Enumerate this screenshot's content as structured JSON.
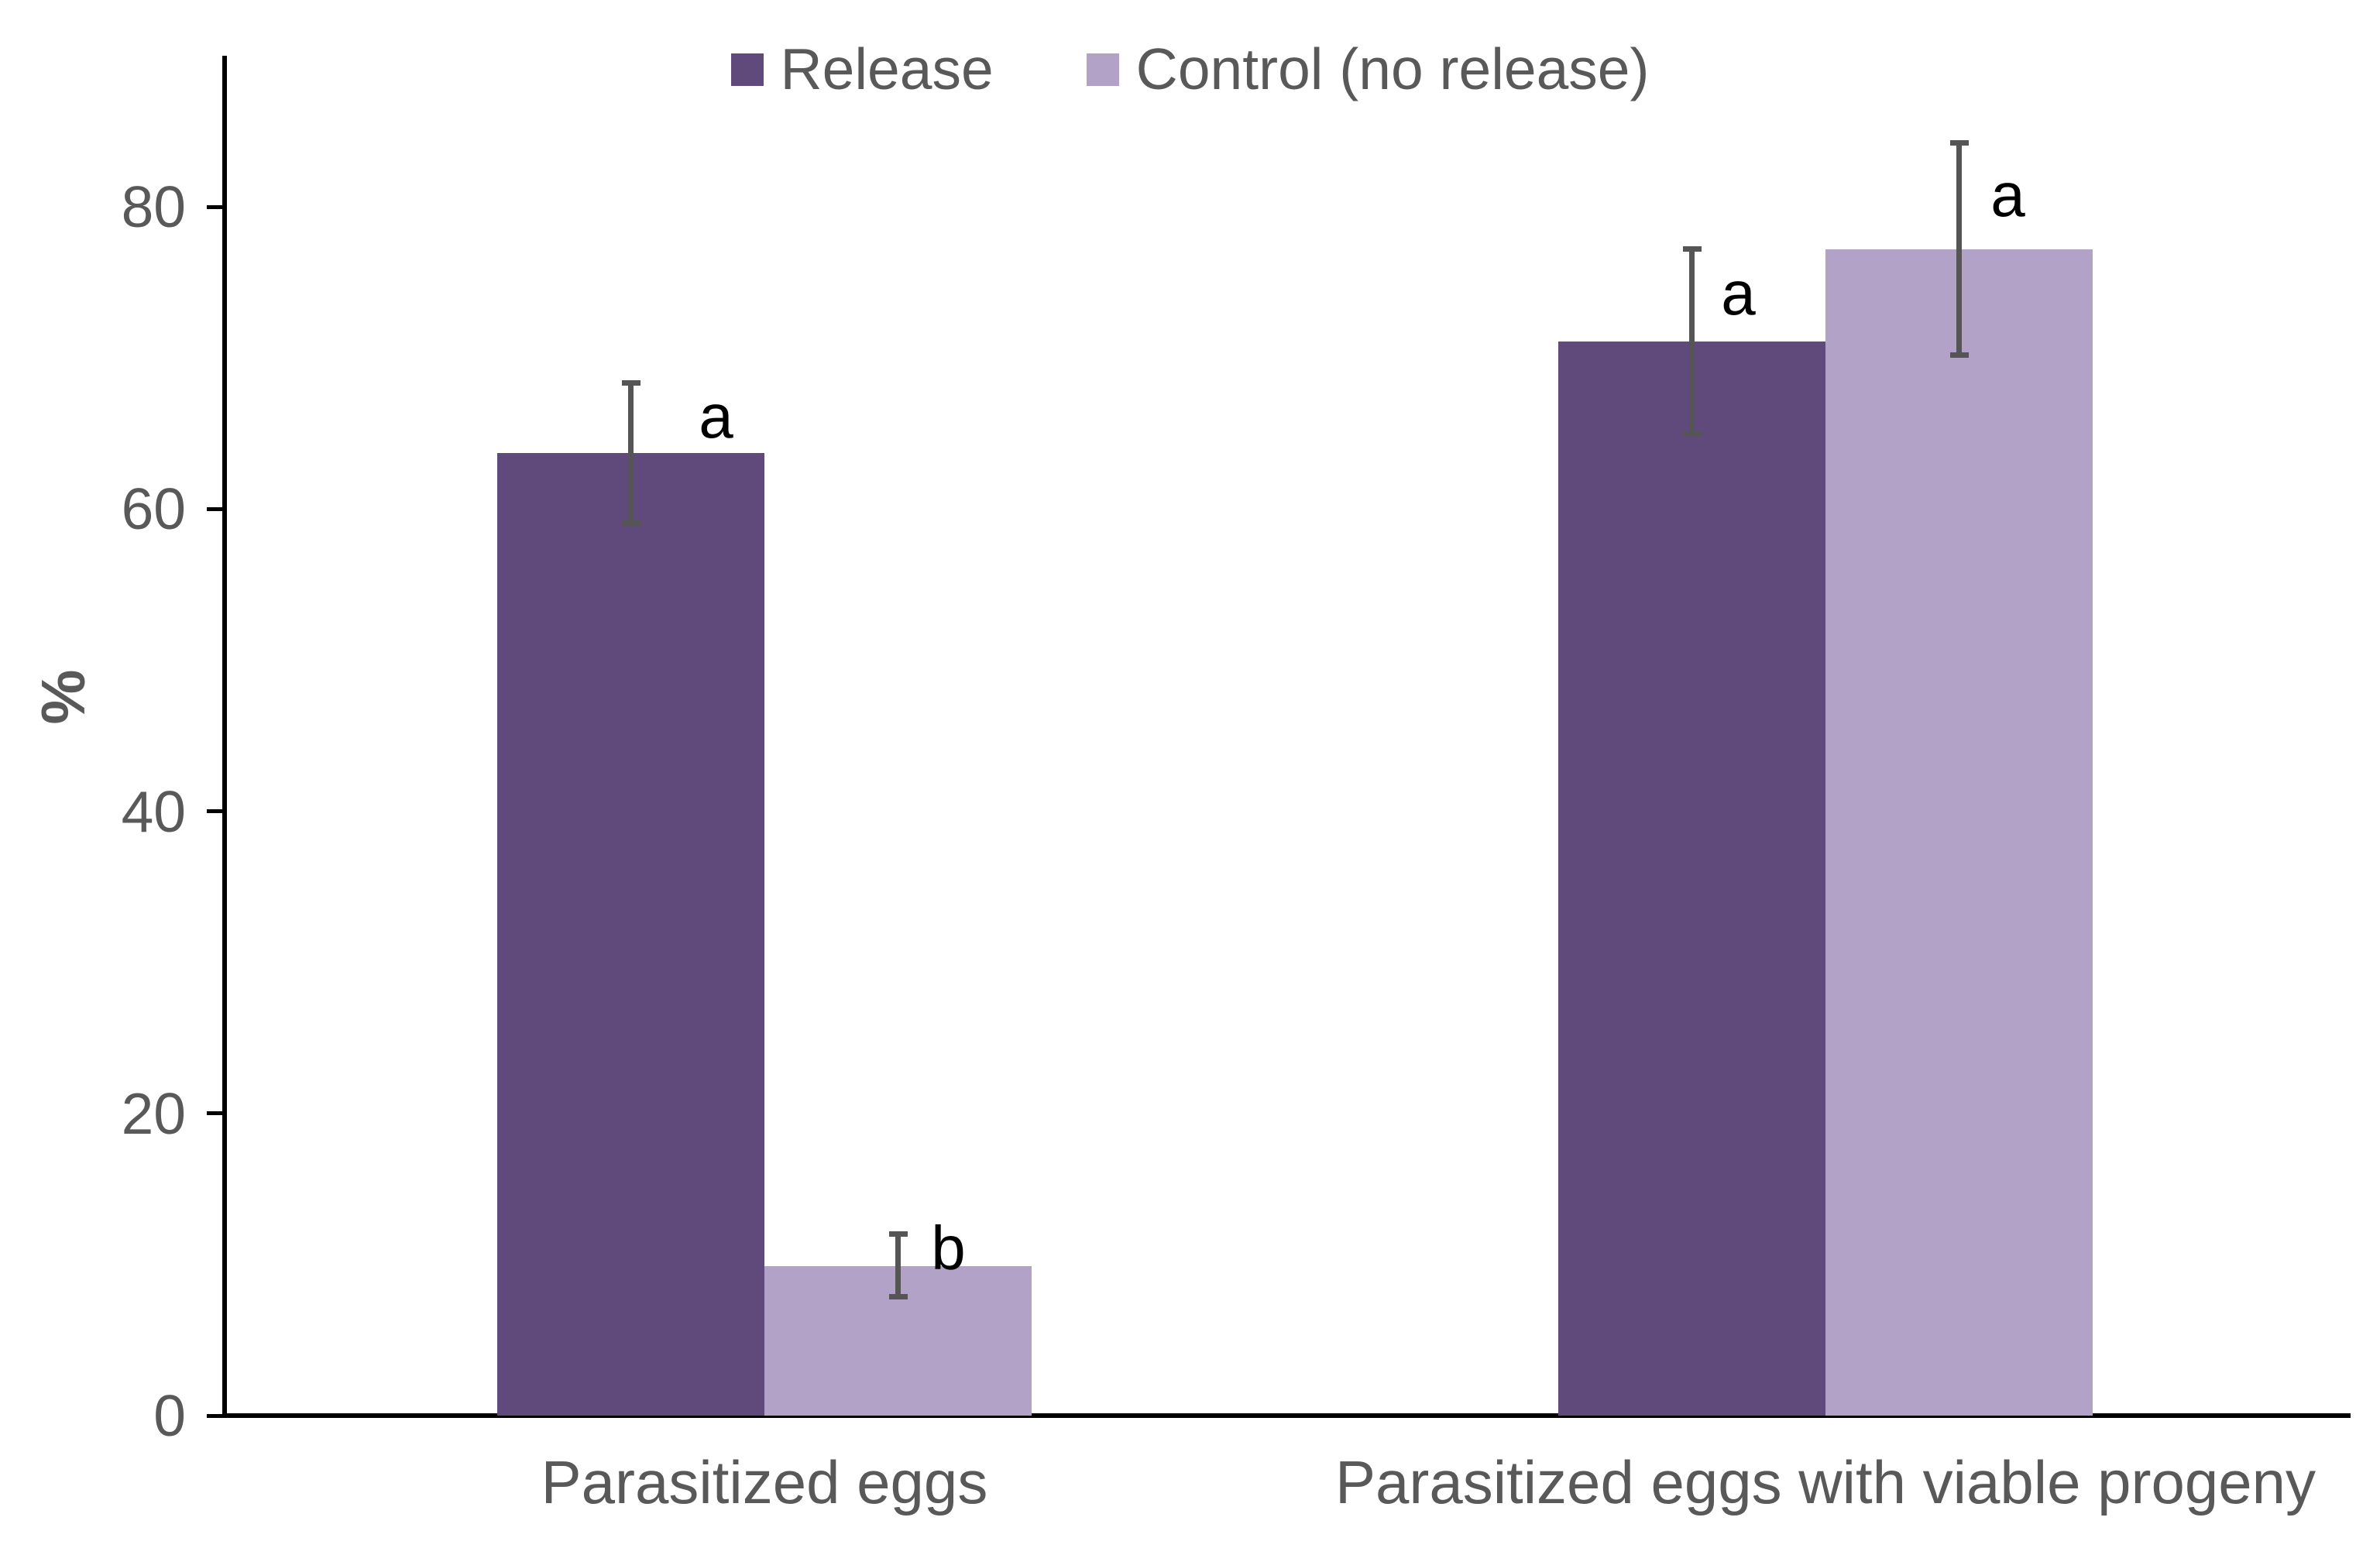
{
  "chart_data": {
    "type": "bar",
    "title": "",
    "ylabel": "%",
    "categories": [
      "Parasitized eggs",
      "Parasitized eggs with viable progeny"
    ],
    "series": [
      {
        "name": "Release",
        "color": "#604A7B",
        "values": [
          63.7,
          71.1
        ],
        "error_plus": [
          4.8,
          6.3
        ],
        "error_minus": [
          4.8,
          6.3
        ],
        "letters": [
          "a",
          "a"
        ]
      },
      {
        "name": "Control (no release)",
        "color": "#B3A2C7",
        "values": [
          9.9,
          77.2
        ],
        "error_plus": [
          2.3,
          7.2
        ],
        "error_minus": [
          2.2,
          7.2
        ],
        "letters": [
          "b",
          "a"
        ]
      }
    ],
    "y_ticks": [
      0,
      20,
      40,
      60,
      80
    ],
    "ylim": [
      0,
      90
    ],
    "grid": "off",
    "legend_position": "top-center",
    "colors": {
      "axis": "#000000",
      "tick_text": "#595959",
      "error_bar": "#555555",
      "letter_text": "#000000"
    }
  }
}
